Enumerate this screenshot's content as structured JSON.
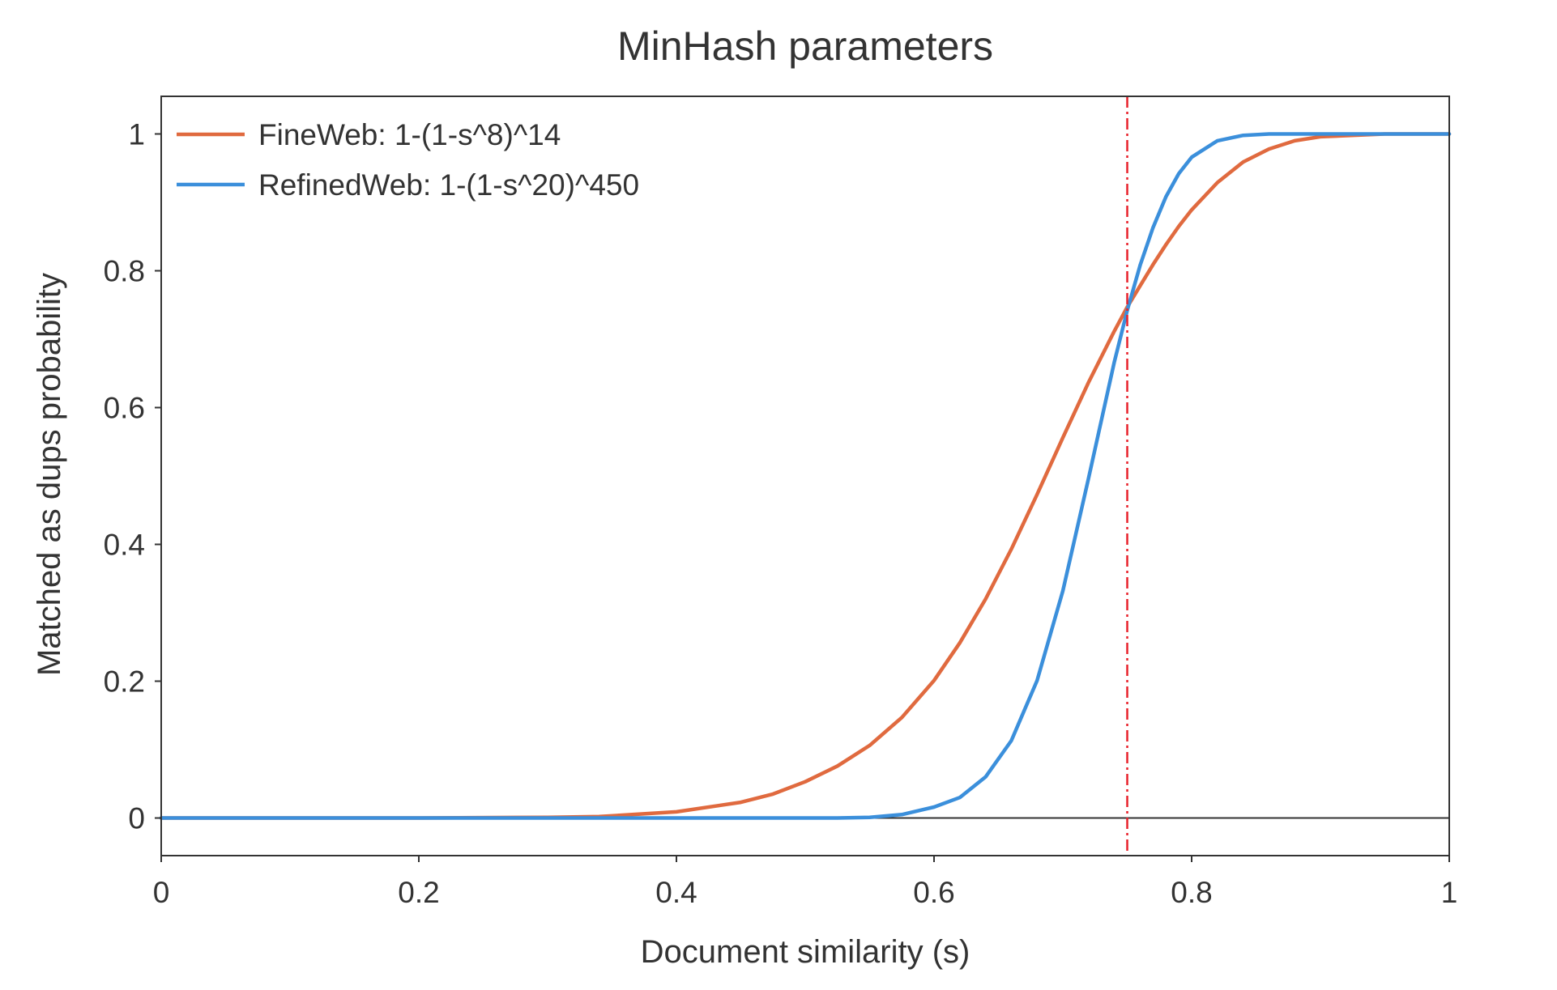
{
  "chart_data": {
    "type": "line",
    "title": "MinHash parameters",
    "xlabel": "Document similarity (s)",
    "ylabel": "Matched as dups probability",
    "xlim": [
      0,
      1
    ],
    "ylim": [
      -0.055,
      1.055
    ],
    "x_ticks": [
      {
        "value": 0,
        "label": "0"
      },
      {
        "value": 0.2,
        "label": "0.2"
      },
      {
        "value": 0.4,
        "label": "0.4"
      },
      {
        "value": 0.6,
        "label": "0.6"
      },
      {
        "value": 0.8,
        "label": "0.8"
      },
      {
        "value": 1,
        "label": "1"
      }
    ],
    "y_ticks": [
      {
        "value": 0,
        "label": "0"
      },
      {
        "value": 0.2,
        "label": "0.2"
      },
      {
        "value": 0.4,
        "label": "0.4"
      },
      {
        "value": 0.6,
        "label": "0.6"
      },
      {
        "value": 0.8,
        "label": "0.8"
      },
      {
        "value": 1,
        "label": "1"
      }
    ],
    "grid": false,
    "legend_position": "top-left",
    "zero_line": true,
    "reference_line": {
      "axis": "x",
      "value": 0.75,
      "style": "dash-dot",
      "color": "#e8202a"
    },
    "x": [
      0,
      0.1,
      0.2,
      0.3,
      0.34,
      0.4,
      0.45,
      0.475,
      0.5,
      0.525,
      0.55,
      0.575,
      0.6,
      0.62,
      0.64,
      0.66,
      0.68,
      0.7,
      0.72,
      0.74,
      0.75,
      0.76,
      0.77,
      0.78,
      0.79,
      0.8,
      0.82,
      0.84,
      0.86,
      0.88,
      0.9,
      0.95,
      1.0
    ],
    "series": [
      {
        "name": "FineWeb: 1-(1-s^8)^14",
        "color": "#e06a3f",
        "values": [
          0,
          0,
          0,
          0.001,
          0.002,
          0.009,
          0.023,
          0.035,
          0.053,
          0.076,
          0.106,
          0.147,
          0.201,
          0.256,
          0.32,
          0.393,
          0.473,
          0.556,
          0.637,
          0.712,
          0.747,
          0.778,
          0.809,
          0.838,
          0.865,
          0.889,
          0.929,
          0.959,
          0.978,
          0.99,
          0.996,
          1.0,
          1.0
        ]
      },
      {
        "name": "RefinedWeb: 1-(1-s^20)^450",
        "color": "#3b8fdb",
        "values": [
          0,
          0,
          0,
          0,
          0,
          0,
          0,
          0,
          0,
          0,
          0.001,
          0.005,
          0.016,
          0.03,
          0.06,
          0.113,
          0.201,
          0.332,
          0.497,
          0.667,
          0.742,
          0.808,
          0.863,
          0.908,
          0.942,
          0.966,
          0.99,
          0.998,
          1.0,
          1.0,
          1.0,
          1.0,
          1.0
        ]
      }
    ]
  }
}
